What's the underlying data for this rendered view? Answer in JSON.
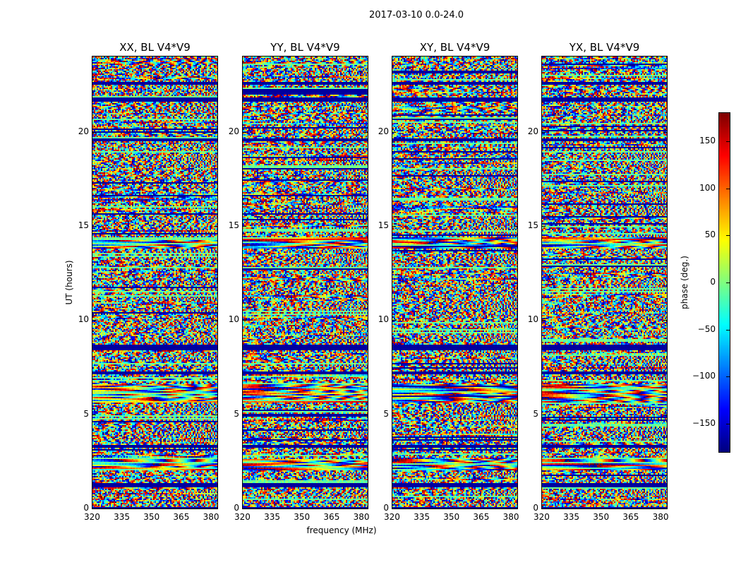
{
  "chart_data": {
    "type": "heatmap",
    "title": "2017-03-10 0.0-24.0",
    "xlabel": "frequency (MHz)",
    "ylabel": "UT (hours)",
    "xlim": [
      320,
      383
    ],
    "ylim": [
      0,
      24
    ],
    "xticks": [
      320,
      335,
      350,
      365,
      380
    ],
    "yticks": [
      0,
      5,
      10,
      15,
      20
    ],
    "colormap": "jet",
    "panels": [
      {
        "title": "XX, BL V4*V9"
      },
      {
        "title": "YY, BL V4*V9"
      },
      {
        "title": "XY, BL V4*V9"
      },
      {
        "title": "YX, BL V4*V9"
      }
    ],
    "colorbar": {
      "label": "phase (deg.)",
      "range": [
        -180,
        180
      ],
      "ticks": [
        -150,
        -100,
        -50,
        0,
        50,
        100,
        150
      ],
      "tick_labels": [
        "−150",
        "−100",
        "−50",
        "0",
        "50",
        "100",
        "150"
      ]
    },
    "flagged_ut_bands": [
      [
        0.0,
        0.1
      ],
      [
        1.15,
        1.35
      ],
      [
        3.2,
        3.35
      ],
      [
        7.1,
        7.25
      ],
      [
        8.4,
        8.7
      ],
      [
        19.5,
        19.65
      ],
      [
        21.6,
        21.8
      ],
      [
        22.5,
        22.65
      ]
    ],
    "fringe_ut_bands": [
      [
        13.8,
        14.4
      ],
      [
        5.6,
        6.6
      ],
      [
        2.0,
        2.6
      ]
    ]
  }
}
